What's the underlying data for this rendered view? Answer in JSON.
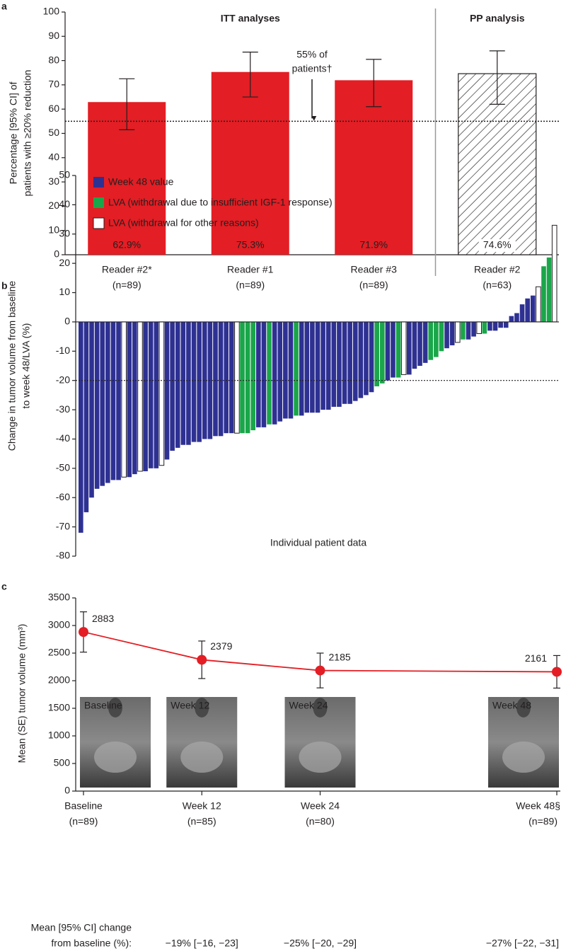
{
  "chart_data": [
    {
      "type": "bar",
      "panel_label": "a",
      "ylabel": [
        "Percentage [95% CI] of",
        "patients with ≥20% reduction"
      ],
      "categories": [
        "Reader #2*",
        "Reader #1",
        "Reader #3",
        "Reader #2"
      ],
      "category_notes": [
        "(n=89)",
        "(n=89)",
        "(n=89)",
        "(n=63)"
      ],
      "values": [
        62.9,
        75.3,
        71.9,
        74.6
      ],
      "value_labels": [
        "62.9%",
        "75.3%",
        "71.9%",
        "74.6%"
      ],
      "ci": [
        [
          51.5,
          72.5
        ],
        [
          65,
          83.5
        ],
        [
          61,
          80.5
        ],
        [
          62,
          84
        ]
      ],
      "hatched": [
        false,
        false,
        false,
        true
      ],
      "color": "#e31e24",
      "groups": [
        {
          "label": "ITT analyses",
          "span": [
            0,
            2
          ]
        },
        {
          "label": "PP analysis",
          "span": [
            3,
            3
          ]
        }
      ],
      "reference": {
        "value": 55,
        "label": [
          "55% of",
          "patients†"
        ]
      },
      "ylim": [
        0,
        100
      ],
      "yticks": [
        0,
        10,
        20,
        30,
        40,
        50,
        60,
        70,
        80,
        90,
        100
      ]
    },
    {
      "type": "waterfall",
      "panel_label": "b",
      "ylabel": [
        "Change in tumor volume from baseline",
        "to week 48/LVA (%)"
      ],
      "xlabel": "Individual patient data",
      "legend": [
        {
          "name": "Week 48 value",
          "color": "#2e3192"
        },
        {
          "name": "LVA (withdrawal due to insufficient IGF-1 response)",
          "color": "#1aa64a"
        },
        {
          "name": "LVA (withdrawal for other reasons)",
          "color": "#ffffff"
        }
      ],
      "values": [
        -72,
        -65,
        -60,
        -57,
        -56,
        -55,
        -54,
        -54,
        -53,
        -53,
        -52,
        -51,
        -51,
        -50,
        -50,
        -49,
        -47,
        -44,
        -43,
        -42,
        -42,
        -41,
        -41,
        -40,
        -40,
        -39,
        -39,
        -38,
        -38,
        -38,
        -38,
        -38,
        -37,
        -36,
        -36,
        -35,
        -35,
        -34,
        -33,
        -33,
        -32,
        -32,
        -31,
        -31,
        -31,
        -30,
        -30,
        -29,
        -29,
        -28,
        -28,
        -27,
        -26,
        -25,
        -24,
        -22,
        -21,
        -20,
        -19,
        -19,
        -18,
        -18,
        -16,
        -15,
        -14,
        -13,
        -12,
        -10,
        -9,
        -8,
        -7,
        -6,
        -6,
        -5,
        -4,
        -4,
        -3,
        -3,
        -2,
        -2,
        2,
        3,
        6,
        8,
        9,
        12,
        19,
        22,
        33
      ],
      "groups": [
        0,
        0,
        0,
        0,
        0,
        0,
        0,
        0,
        2,
        0,
        0,
        2,
        0,
        0,
        0,
        2,
        0,
        0,
        0,
        0,
        0,
        0,
        0,
        0,
        0,
        0,
        0,
        0,
        0,
        2,
        1,
        1,
        1,
        0,
        0,
        1,
        0,
        0,
        0,
        0,
        1,
        0,
        0,
        0,
        0,
        0,
        0,
        0,
        0,
        0,
        0,
        0,
        0,
        0,
        0,
        1,
        1,
        0,
        0,
        1,
        2,
        0,
        0,
        0,
        0,
        1,
        1,
        1,
        0,
        0,
        2,
        1,
        0,
        0,
        2,
        1,
        0,
        0,
        0,
        0,
        0,
        0,
        0,
        0,
        0,
        2,
        1,
        1,
        2
      ],
      "reference": -20,
      "ylim": [
        -80,
        50
      ],
      "yticks": [
        -80,
        -70,
        -60,
        -50,
        -40,
        -30,
        -20,
        -10,
        0,
        10,
        20,
        30,
        40,
        50
      ]
    },
    {
      "type": "line",
      "panel_label": "c",
      "ylabel": "Mean (SE) tumor volume (mm³)",
      "x": [
        0,
        12,
        24,
        48
      ],
      "values": [
        2883,
        2379,
        2185,
        2161
      ],
      "errors": [
        365,
        340,
        315,
        295
      ],
      "color": "#e31e24",
      "xlim": [
        0,
        48
      ],
      "xticks": [
        {
          "value": 0,
          "label": "Baseline"
        },
        {
          "value": 12,
          "label": "Week 12"
        },
        {
          "value": 24,
          "label": "Week 24"
        },
        {
          "value": 48,
          "label": "Week 48§"
        }
      ],
      "x_notes": [
        "(n=89)",
        "(n=85)",
        "(n=80)",
        "(n=89)"
      ],
      "images": [
        "Baseline",
        "Week 12",
        "Week 24",
        "Week 48"
      ],
      "change_label": [
        "Mean [95% CI] change",
        "from baseline (%):"
      ],
      "changes": [
        null,
        "−19% [−16, −23]",
        "−25% [−20, −29]",
        "−27% [−22, −31]"
      ],
      "ylim": [
        0,
        3500
      ],
      "yticks": [
        0,
        500,
        1000,
        1500,
        2000,
        2500,
        3000,
        3500
      ]
    }
  ]
}
